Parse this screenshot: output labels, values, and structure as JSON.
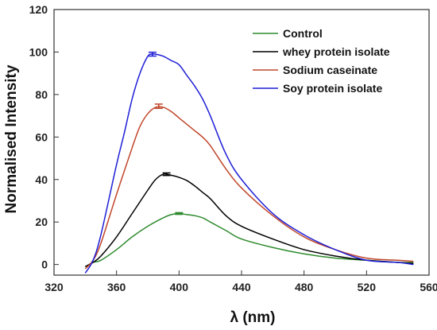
{
  "chart_data": {
    "type": "line",
    "title": "",
    "xlabel": "λ (nm)",
    "ylabel": "Normalised Intensity",
    "xlim": [
      320,
      560
    ],
    "ylim": [
      -5,
      120
    ],
    "xticks": [
      320,
      360,
      400,
      440,
      480,
      520,
      560
    ],
    "yticks": [
      0,
      20,
      40,
      60,
      80,
      100,
      120
    ],
    "legend_position": "top-right",
    "grid": false,
    "series": [
      {
        "name": "Control",
        "color": "#2e8b2e",
        "x": [
          340,
          345,
          350,
          360,
          370,
          380,
          390,
          395,
          400,
          405,
          410,
          415,
          420,
          430,
          440,
          460,
          480,
          500,
          520,
          540,
          550
        ],
        "y": [
          -1,
          1,
          2,
          7,
          13,
          18,
          22,
          23.5,
          24,
          23.5,
          23,
          22,
          20,
          16,
          12,
          8,
          5,
          3,
          2,
          1,
          1
        ],
        "error_x": 400,
        "error_y": 24,
        "error": 0.4
      },
      {
        "name": "whey protein isolate",
        "color": "#000000",
        "x": [
          340,
          345,
          350,
          360,
          370,
          380,
          385,
          390,
          395,
          400,
          405,
          410,
          415,
          420,
          430,
          440,
          460,
          480,
          500,
          520,
          540,
          550
        ],
        "y": [
          -1,
          1,
          4,
          13,
          24,
          35,
          40,
          42.5,
          42,
          41,
          39.5,
          37,
          34,
          31,
          23,
          18,
          12,
          7,
          4,
          2,
          1,
          0.5
        ],
        "error_x": 392,
        "error_y": 42.5,
        "error": 0.6
      },
      {
        "name": "Sodium caseinate",
        "color": "#c0462a",
        "x": [
          340,
          345,
          350,
          360,
          370,
          375,
          380,
          385,
          390,
          395,
          400,
          405,
          410,
          415,
          420,
          430,
          440,
          460,
          480,
          500,
          520,
          540,
          550
        ],
        "y": [
          -2,
          2,
          10,
          33,
          55,
          65,
          71,
          74,
          74,
          72,
          69,
          66,
          63,
          60,
          56,
          45,
          36,
          23,
          13,
          7,
          3,
          2,
          1.5
        ],
        "error_x": 387,
        "error_y": 74.5,
        "error": 1.0
      },
      {
        "name": "Soy protein isolate",
        "color": "#1f1fd6",
        "x": [
          340,
          345,
          350,
          360,
          365,
          370,
          375,
          380,
          383,
          385,
          390,
          395,
          400,
          405,
          410,
          415,
          420,
          430,
          440,
          460,
          480,
          500,
          520,
          540,
          550
        ],
        "y": [
          -4,
          2,
          14,
          47,
          62,
          78,
          90,
          98,
          99,
          99,
          98,
          96,
          94,
          89,
          84,
          78,
          70,
          52,
          40,
          24,
          14,
          7,
          2,
          1,
          0
        ],
        "error_x": 383,
        "error_y": 99,
        "error": 0.9
      }
    ]
  }
}
